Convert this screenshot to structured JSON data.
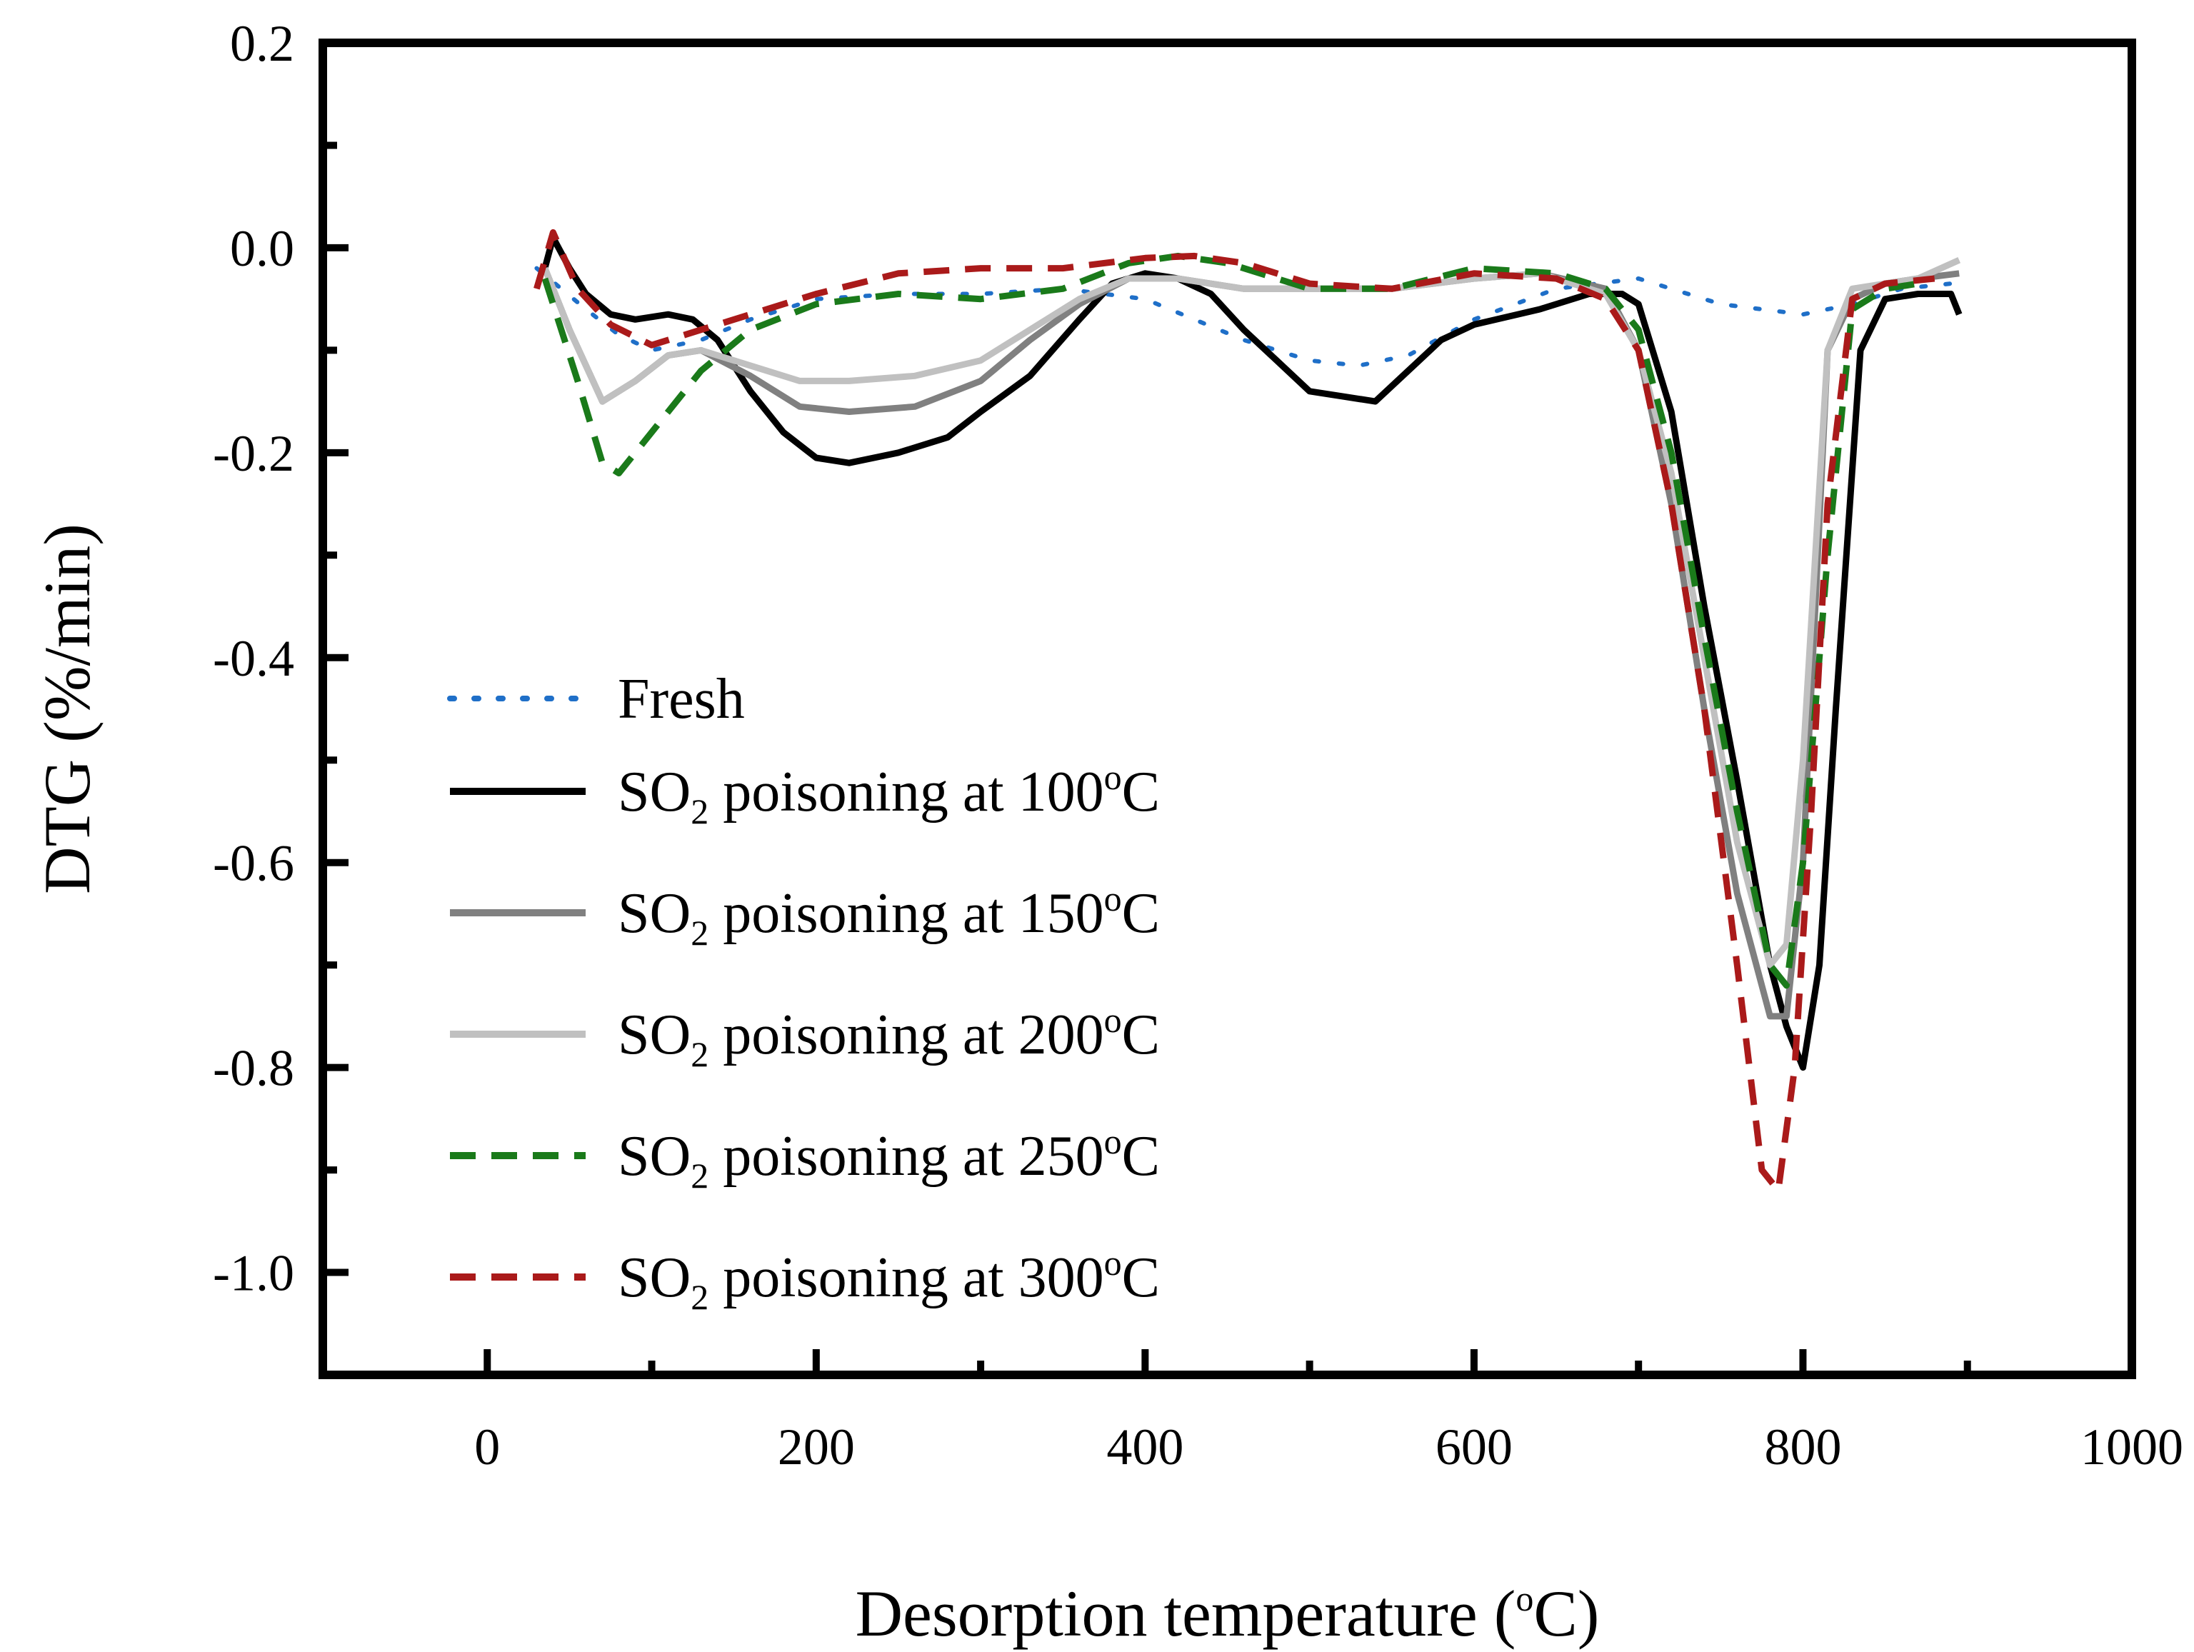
{
  "chart_data": {
    "type": "line",
    "xlabel": {
      "main": "Desorption temperature (",
      "sup": "o",
      "tail": "C)"
    },
    "ylabel": "DTG (%/min)",
    "xlim": [
      -100,
      1000
    ],
    "ylim": [
      -1.1,
      0.2
    ],
    "xticks": [
      0,
      200,
      400,
      600,
      800,
      1000
    ],
    "xtick_labels": [
      "0",
      "200",
      "400",
      "600",
      "800",
      "1000"
    ],
    "yticks": [
      0.2,
      0.0,
      -0.2,
      -0.4,
      -0.6,
      -0.8,
      -1.0
    ],
    "ytick_labels": [
      "0.2",
      "0.0",
      "-0.2",
      "-0.4",
      "-0.6",
      "-0.8",
      "-1.0"
    ],
    "legend_position": "lower-left",
    "series": [
      {
        "name": "Fresh",
        "legend": {
          "prefix": "Fresh"
        },
        "color": "#1f6fc8",
        "style": "dotted",
        "x": [
          30,
          60,
          80,
          100,
          130,
          160,
          200,
          250,
          300,
          350,
          400,
          430,
          460,
          500,
          530,
          560,
          600,
          650,
          700,
          750,
          800,
          830,
          860,
          890
        ],
        "y": [
          -0.02,
          -0.06,
          -0.085,
          -0.1,
          -0.09,
          -0.07,
          -0.05,
          -0.045,
          -0.045,
          -0.04,
          -0.05,
          -0.07,
          -0.09,
          -0.11,
          -0.115,
          -0.105,
          -0.07,
          -0.04,
          -0.03,
          -0.055,
          -0.065,
          -0.055,
          -0.04,
          -0.035
        ]
      },
      {
        "name": "SO2 poisoning at 100°C",
        "legend": {
          "prefix": "SO",
          "sub": "2",
          "middle": " poisoning at 100",
          "sup": "o",
          "suffix": "C"
        },
        "color": "#000000",
        "style": "solid",
        "x": [
          35,
          40,
          50,
          60,
          75,
          90,
          110,
          125,
          140,
          160,
          180,
          200,
          220,
          250,
          280,
          300,
          330,
          360,
          380,
          400,
          420,
          440,
          460,
          480,
          500,
          520,
          540,
          560,
          580,
          600,
          640,
          670,
          690,
          700,
          720,
          740,
          760,
          780,
          790,
          800,
          810,
          820,
          835,
          850,
          870,
          890,
          895
        ],
        "y": [
          -0.02,
          0.01,
          -0.02,
          -0.045,
          -0.065,
          -0.07,
          -0.065,
          -0.07,
          -0.09,
          -0.14,
          -0.18,
          -0.205,
          -0.21,
          -0.2,
          -0.185,
          -0.16,
          -0.125,
          -0.07,
          -0.035,
          -0.025,
          -0.03,
          -0.045,
          -0.08,
          -0.11,
          -0.14,
          -0.145,
          -0.15,
          -0.12,
          -0.09,
          -0.075,
          -0.06,
          -0.045,
          -0.045,
          -0.055,
          -0.16,
          -0.35,
          -0.52,
          -0.7,
          -0.76,
          -0.8,
          -0.7,
          -0.45,
          -0.1,
          -0.05,
          -0.045,
          -0.045,
          -0.065
        ]
      },
      {
        "name": "SO2 poisoning at 150°C",
        "legend": {
          "prefix": "SO",
          "sub": "2",
          "middle": " poisoning at 150",
          "sup": "o",
          "suffix": "C"
        },
        "color": "#808080",
        "style": "solid",
        "x": [
          35,
          50,
          70,
          90,
          110,
          130,
          160,
          190,
          220,
          260,
          300,
          330,
          360,
          390,
          420,
          460,
          500,
          550,
          600,
          640,
          680,
          700,
          720,
          740,
          760,
          780,
          790,
          800,
          815,
          830,
          850,
          870,
          895
        ],
        "y": [
          -0.02,
          -0.08,
          -0.15,
          -0.13,
          -0.105,
          -0.1,
          -0.125,
          -0.155,
          -0.16,
          -0.155,
          -0.13,
          -0.09,
          -0.055,
          -0.03,
          -0.03,
          -0.04,
          -0.04,
          -0.04,
          -0.03,
          -0.025,
          -0.04,
          -0.1,
          -0.25,
          -0.45,
          -0.63,
          -0.75,
          -0.75,
          -0.6,
          -0.1,
          -0.05,
          -0.035,
          -0.03,
          -0.025
        ]
      },
      {
        "name": "SO2 poisoning at 200°C",
        "legend": {
          "prefix": "SO",
          "sub": "2",
          "middle": " poisoning at 200",
          "sup": "o",
          "suffix": "C"
        },
        "color": "#c0c0c0",
        "style": "solid",
        "x": [
          35,
          50,
          70,
          90,
          110,
          130,
          160,
          190,
          220,
          260,
          300,
          330,
          360,
          390,
          420,
          460,
          500,
          550,
          600,
          640,
          680,
          700,
          720,
          740,
          760,
          780,
          790,
          800,
          815,
          830,
          850,
          870,
          895
        ],
        "y": [
          -0.02,
          -0.08,
          -0.15,
          -0.13,
          -0.105,
          -0.1,
          -0.115,
          -0.13,
          -0.13,
          -0.125,
          -0.11,
          -0.08,
          -0.05,
          -0.03,
          -0.03,
          -0.04,
          -0.04,
          -0.04,
          -0.03,
          -0.025,
          -0.045,
          -0.1,
          -0.22,
          -0.4,
          -0.58,
          -0.7,
          -0.68,
          -0.5,
          -0.1,
          -0.04,
          -0.035,
          -0.03,
          -0.012
        ]
      },
      {
        "name": "SO2 poisoning at 250°C",
        "legend": {
          "prefix": "SO",
          "sub": "2",
          "middle": " poisoning at 250",
          "sup": "o",
          "suffix": "C"
        },
        "color": "#1a7a1a",
        "style": "dashed",
        "x": [
          35,
          55,
          70,
          80,
          100,
          130,
          160,
          200,
          250,
          300,
          350,
          390,
          420,
          450,
          500,
          550,
          600,
          650,
          680,
          700,
          720,
          740,
          760,
          780,
          790,
          800,
          815,
          830,
          850,
          870
        ],
        "y": [
          -0.03,
          -0.13,
          -0.21,
          -0.22,
          -0.18,
          -0.12,
          -0.08,
          -0.055,
          -0.045,
          -0.05,
          -0.04,
          -0.015,
          -0.008,
          -0.015,
          -0.04,
          -0.04,
          -0.02,
          -0.025,
          -0.04,
          -0.08,
          -0.2,
          -0.38,
          -0.55,
          -0.7,
          -0.72,
          -0.6,
          -0.3,
          -0.06,
          -0.04,
          -0.035
        ]
      },
      {
        "name": "SO2 poisoning at 300°C",
        "legend": {
          "prefix": "SO",
          "sub": "2",
          "middle": " poisoning at 300",
          "sup": "o",
          "suffix": "C"
        },
        "color": "#aa1a1a",
        "style": "dashed",
        "x": [
          30,
          40,
          55,
          75,
          100,
          130,
          160,
          200,
          250,
          300,
          350,
          400,
          430,
          460,
          500,
          550,
          600,
          650,
          680,
          700,
          720,
          740,
          760,
          775,
          785,
          795,
          805,
          815,
          830,
          850,
          880
        ],
        "y": [
          -0.04,
          0.015,
          -0.04,
          -0.075,
          -0.095,
          -0.08,
          -0.065,
          -0.045,
          -0.025,
          -0.02,
          -0.02,
          -0.01,
          -0.008,
          -0.015,
          -0.035,
          -0.04,
          -0.025,
          -0.03,
          -0.05,
          -0.1,
          -0.25,
          -0.45,
          -0.7,
          -0.9,
          -0.92,
          -0.8,
          -0.55,
          -0.25,
          -0.05,
          -0.035,
          -0.03
        ]
      }
    ]
  }
}
